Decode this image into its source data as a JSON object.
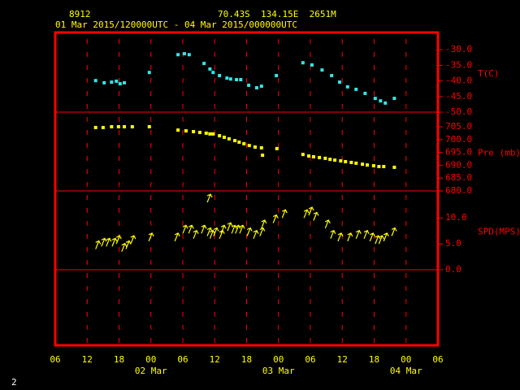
{
  "header": {
    "station": "8912",
    "location": "70.43S  134.15E  2651M",
    "period": "01 Mar 2015/120000UTC - 04 Mar 2015/000000UTC"
  },
  "x_axis": {
    "xlim": [
      6,
      78
    ],
    "xticks": [
      {
        "value": 6,
        "label": "06"
      },
      {
        "value": 12,
        "label": "12"
      },
      {
        "value": 18,
        "label": "18"
      },
      {
        "value": 24,
        "label": "00"
      },
      {
        "value": 30,
        "label": "06"
      },
      {
        "value": 36,
        "label": "12"
      },
      {
        "value": 42,
        "label": "18"
      },
      {
        "value": 48,
        "label": "00"
      },
      {
        "value": 54,
        "label": "06"
      },
      {
        "value": 60,
        "label": "12"
      },
      {
        "value": 66,
        "label": "18"
      },
      {
        "value": 72,
        "label": "00"
      },
      {
        "value": 78,
        "label": "06"
      }
    ],
    "date_labels": [
      {
        "value": 24,
        "label": "02 Mar"
      },
      {
        "value": 48,
        "label": "03 Mar"
      },
      {
        "value": 72,
        "label": "04 Mar"
      }
    ]
  },
  "chart_data": [
    {
      "type": "scatter",
      "y_label": "T(C)",
      "color": "#33e6e6",
      "ylim": [
        -50,
        -24.5
      ],
      "yticks": [
        {
          "value": -50,
          "label": "-50.0"
        },
        {
          "value": -45,
          "label": "-45.0"
        },
        {
          "value": -40,
          "label": "-40.0"
        },
        {
          "value": -35,
          "label": "-35.0"
        },
        {
          "value": -30,
          "label": "-30.0"
        }
      ],
      "x": [
        13.6,
        15.2,
        16.6,
        17.5,
        18.2,
        19.0,
        23.7,
        29.1,
        30.3,
        31.2,
        34.0,
        35.1,
        35.7,
        36.9,
        38.3,
        39.0,
        40.1,
        40.9,
        42.4,
        43.9,
        44.8,
        47.6,
        52.6,
        54.3,
        56.2,
        58.0,
        59.5,
        61.0,
        62.6,
        64.3,
        66.2,
        67.2,
        68.1,
        69.8
      ],
      "values": [
        -39.9,
        -40.6,
        -40.4,
        -40.1,
        -40.9,
        -40.6,
        -37.3,
        -31.6,
        -31.3,
        -31.6,
        -34.4,
        -36.2,
        -37.3,
        -38.3,
        -39.1,
        -39.4,
        -39.6,
        -39.6,
        -41.4,
        -42.2,
        -41.7,
        -38.3,
        -34.2,
        -34.9,
        -36.5,
        -38.3,
        -40.4,
        -41.9,
        -42.7,
        -44.0,
        -45.6,
        -46.4,
        -47.1,
        -45.6
      ]
    },
    {
      "type": "scatter",
      "y_label": "Pre (mb)",
      "color": "#ffff00",
      "ylim": [
        680,
        710.7
      ],
      "yticks": [
        {
          "value": 680,
          "label": "680.0"
        },
        {
          "value": 685,
          "label": "685.0"
        },
        {
          "value": 690,
          "label": "690.0"
        },
        {
          "value": 695,
          "label": "695.0"
        },
        {
          "value": 700,
          "label": "700.0"
        },
        {
          "value": 705,
          "label": "705.0"
        }
      ],
      "x": [
        13.6,
        15.0,
        16.6,
        17.9,
        19.0,
        20.5,
        23.7,
        29.1,
        30.6,
        32.0,
        33.2,
        34.4,
        35.1,
        35.7,
        36.9,
        37.8,
        38.7,
        39.8,
        40.6,
        41.5,
        42.5,
        43.6,
        44.8,
        45.0,
        47.7,
        52.6,
        53.7,
        54.6,
        55.7,
        56.8,
        57.7,
        58.6,
        59.7,
        60.6,
        61.7,
        62.6,
        63.8,
        64.7,
        65.9,
        66.9,
        67.8,
        69.8
      ],
      "values": [
        704.7,
        704.7,
        705.0,
        705.0,
        705.0,
        705.0,
        705.0,
        703.7,
        703.4,
        703.1,
        702.8,
        702.5,
        702.2,
        702.2,
        701.5,
        700.9,
        700.3,
        699.6,
        699.0,
        698.4,
        697.7,
        697.1,
        696.8,
        693.9,
        696.5,
        694.2,
        693.6,
        693.3,
        693.0,
        692.7,
        692.3,
        692.0,
        691.7,
        691.4,
        691.1,
        690.8,
        690.4,
        690.1,
        689.8,
        689.5,
        689.5,
        689.2
      ]
    },
    {
      "type": "arrow",
      "y_label": "SPD(MPS)",
      "color": "#ffff00",
      "ylim": [
        0,
        15.2
      ],
      "yticks": [
        {
          "value": 0,
          "label": "0.0"
        },
        {
          "value": 5,
          "label": "5.0"
        },
        {
          "value": 10,
          "label": "10.0"
        }
      ],
      "x": [
        13.6,
        14.7,
        15.6,
        16.7,
        17.5,
        18.5,
        19.3,
        20.2,
        23.6,
        28.5,
        30.0,
        31.1,
        32.0,
        33.5,
        34.6,
        34.6,
        35.1,
        35.8,
        36.9,
        37.2,
        38.4,
        39.2,
        39.9,
        40.7,
        42.1,
        43.3,
        44.5,
        44.8,
        47.0,
        48.7,
        52.8,
        53.7,
        54.6,
        56.8,
        57.8,
        59.2,
        61.0,
        62.6,
        64.1,
        65.2,
        66.2,
        66.9,
        67.8,
        69.3
      ],
      "values": [
        4,
        4.5,
        4.5,
        4.5,
        5,
        3.5,
        4,
        5,
        5.5,
        5.5,
        7,
        7,
        6,
        7,
        6.5,
        13,
        6,
        6.5,
        6,
        7,
        7.5,
        7,
        7,
        7,
        6.5,
        6,
        6.5,
        8,
        9,
        10,
        10,
        10.5,
        9.5,
        8,
        6,
        5.5,
        5.5,
        6,
        6,
        5.5,
        5,
        5,
        5.5,
        6.5
      ]
    }
  ],
  "page_number": "2"
}
